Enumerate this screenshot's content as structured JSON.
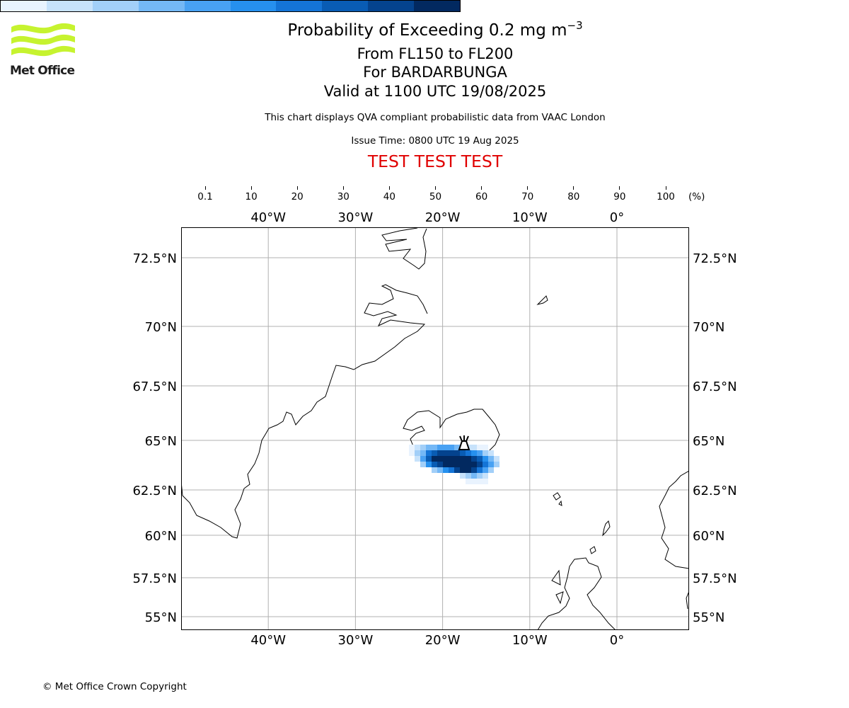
{
  "header": {
    "logo_text": "Met Office",
    "title": "Probability of Exceeding 0.2 mg m",
    "title_superscript": "−3",
    "level_range": "From FL150 to FL200",
    "volcano": "For BARDARBUNGA",
    "valid_time": "Valid at 1100 UTC 19/08/2025",
    "description": "This chart displays QVA compliant probabilistic data from VAAC London",
    "issue_time": "Issue Time: 0800 UTC 19 Aug 2025",
    "test_banner": "TEST TEST TEST"
  },
  "colorbar": {
    "unit": "(%)",
    "ticks": [
      "0.1",
      "10",
      "20",
      "30",
      "40",
      "50",
      "60",
      "70",
      "80",
      "90",
      "100"
    ],
    "colors": [
      "#e9f3fe",
      "#c7e2fb",
      "#a2cff8",
      "#74b8f6",
      "#48a1f3",
      "#2690ee",
      "#1474d6",
      "#095cb4",
      "#04438e",
      "#022960"
    ]
  },
  "map": {
    "lon_labels": [
      "40°W",
      "30°W",
      "20°W",
      "10°W",
      "0°"
    ],
    "lon_values": [
      -40,
      -30,
      -20,
      -10,
      0
    ],
    "lat_labels": [
      "72.5°N",
      "70°N",
      "67.5°N",
      "65°N",
      "62.5°N",
      "60°N",
      "57.5°N",
      "55°N"
    ],
    "lat_values": [
      72.5,
      70,
      67.5,
      65,
      62.5,
      60,
      57.5,
      55
    ],
    "extent": {
      "lon_min": -50,
      "lon_max": 8.3,
      "lat_min": 54.3,
      "lat_max": 73.6
    },
    "volcano_name": "Bardarbunga",
    "plume_color_scale": "probability %"
  },
  "footer": {
    "copyright": "© Met Office Crown Copyright"
  }
}
